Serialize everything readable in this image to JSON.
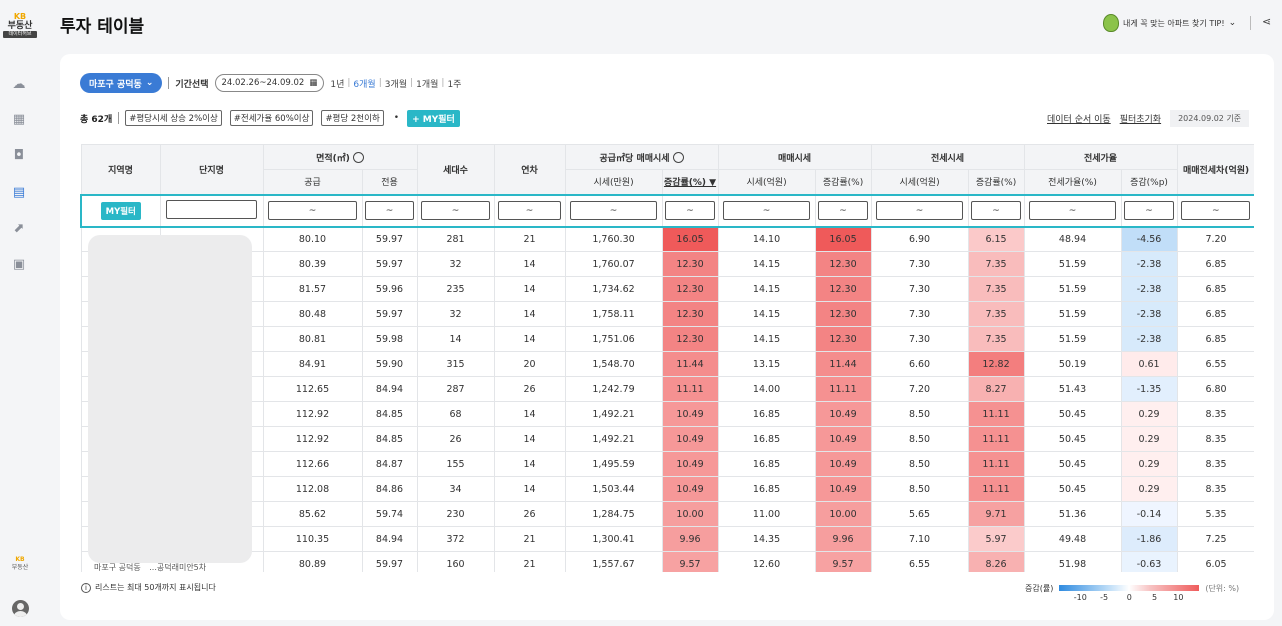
{
  "sidebar": {
    "logo": {
      "kb": "KB",
      "name": "부동산",
      "hub": "데이터허브"
    },
    "icons": [
      "weather-icon",
      "dashboard-icon",
      "ai-icon",
      "table-icon",
      "chart-icon",
      "report-icon"
    ],
    "active": "table-icon",
    "bottom_logo": {
      "kb": "KB",
      "name": "부동산"
    }
  },
  "header": {
    "title": "투자 테이블",
    "tip": "내게 꼭 맞는 아파트 찾기 TIP!"
  },
  "filters": {
    "region": "마포구 공덕동",
    "period_label": "기간선택",
    "date_range": "24.02.26~24.09.02",
    "periods": [
      "1년",
      "6개월",
      "3개월",
      "1개월",
      "1주"
    ],
    "active_period": "6개월"
  },
  "summary": {
    "total": "총 62개",
    "tags": [
      "#평당시세 상승 2%이상",
      "#전세가율 60%이상",
      "#평당 2천이하"
    ],
    "my_filter": "+ MY필터",
    "links": [
      "데이터 순서 이동",
      "필터초기화"
    ],
    "base_date": "2024.09.02 기준"
  },
  "table": {
    "groups": {
      "region": "지역명",
      "complex": "단지명",
      "area": "면적(㎡)",
      "households": "세대수",
      "age": "연차",
      "price_per": "공급㎡당 매매시세",
      "sale": "매매시세",
      "jeonse": "전세시세",
      "ratio": "전세가율",
      "gap": "매매전세차(억원)"
    },
    "sub": [
      "공급",
      "전용",
      "시세(만원)",
      "증감률(%) ▼",
      "시세(억원)",
      "증감률(%)",
      "시세(억원)",
      "증감률(%)",
      "전세가율(%)",
      "증감(%p)"
    ],
    "filter_tag": "MY필터",
    "range_symbol": "~",
    "rows": [
      [
        "80.10",
        "59.97",
        "281",
        "21",
        "1,760.30",
        "16.05",
        "14.10",
        "16.05",
        "6.90",
        "6.15",
        "48.94",
        "-4.56",
        "7.20"
      ],
      [
        "80.39",
        "59.97",
        "32",
        "14",
        "1,760.07",
        "12.30",
        "14.15",
        "12.30",
        "7.30",
        "7.35",
        "51.59",
        "-2.38",
        "6.85"
      ],
      [
        "81.57",
        "59.96",
        "235",
        "14",
        "1,734.62",
        "12.30",
        "14.15",
        "12.30",
        "7.30",
        "7.35",
        "51.59",
        "-2.38",
        "6.85"
      ],
      [
        "80.48",
        "59.97",
        "32",
        "14",
        "1,758.11",
        "12.30",
        "14.15",
        "12.30",
        "7.30",
        "7.35",
        "51.59",
        "-2.38",
        "6.85"
      ],
      [
        "80.81",
        "59.98",
        "14",
        "14",
        "1,751.06",
        "12.30",
        "14.15",
        "12.30",
        "7.30",
        "7.35",
        "51.59",
        "-2.38",
        "6.85"
      ],
      [
        "84.91",
        "59.90",
        "315",
        "20",
        "1,548.70",
        "11.44",
        "13.15",
        "11.44",
        "6.60",
        "12.82",
        "50.19",
        "0.61",
        "6.55"
      ],
      [
        "112.65",
        "84.94",
        "287",
        "26",
        "1,242.79",
        "11.11",
        "14.00",
        "11.11",
        "7.20",
        "8.27",
        "51.43",
        "-1.35",
        "6.80"
      ],
      [
        "112.92",
        "84.85",
        "68",
        "14",
        "1,492.21",
        "10.49",
        "16.85",
        "10.49",
        "8.50",
        "11.11",
        "50.45",
        "0.29",
        "8.35"
      ],
      [
        "112.92",
        "84.85",
        "26",
        "14",
        "1,492.21",
        "10.49",
        "16.85",
        "10.49",
        "8.50",
        "11.11",
        "50.45",
        "0.29",
        "8.35"
      ],
      [
        "112.66",
        "84.87",
        "155",
        "14",
        "1,495.59",
        "10.49",
        "16.85",
        "10.49",
        "8.50",
        "11.11",
        "50.45",
        "0.29",
        "8.35"
      ],
      [
        "112.08",
        "84.86",
        "34",
        "14",
        "1,503.44",
        "10.49",
        "16.85",
        "10.49",
        "8.50",
        "11.11",
        "50.45",
        "0.29",
        "8.35"
      ],
      [
        "85.62",
        "59.74",
        "230",
        "26",
        "1,284.75",
        "10.00",
        "11.00",
        "10.00",
        "5.65",
        "9.71",
        "51.36",
        "-0.14",
        "5.35"
      ],
      [
        "110.35",
        "84.94",
        "372",
        "21",
        "1,300.41",
        "9.96",
        "14.35",
        "9.96",
        "7.10",
        "5.97",
        "49.48",
        "-1.86",
        "7.25"
      ],
      [
        "80.89",
        "59.97",
        "160",
        "21",
        "1,557.67",
        "9.57",
        "12.60",
        "9.57",
        "6.55",
        "8.26",
        "51.98",
        "-0.63",
        "6.05"
      ]
    ],
    "last_row_cut": {
      "region": "마포구 공덕동",
      "complex": "...공덕래미안5차"
    }
  },
  "footer": {
    "note": "리스트는 최대 50개까지 표시됩니다",
    "legend_label": "증감(률)",
    "legend_ticks": [
      "-10",
      "-5",
      "0",
      "5",
      "10"
    ],
    "legend_unit": "(단위: %)"
  },
  "colors": {
    "accent": "#3a7bd5",
    "teal": "#2ab7c7",
    "up": "#ef5c5c",
    "down": "#2f8be0"
  }
}
